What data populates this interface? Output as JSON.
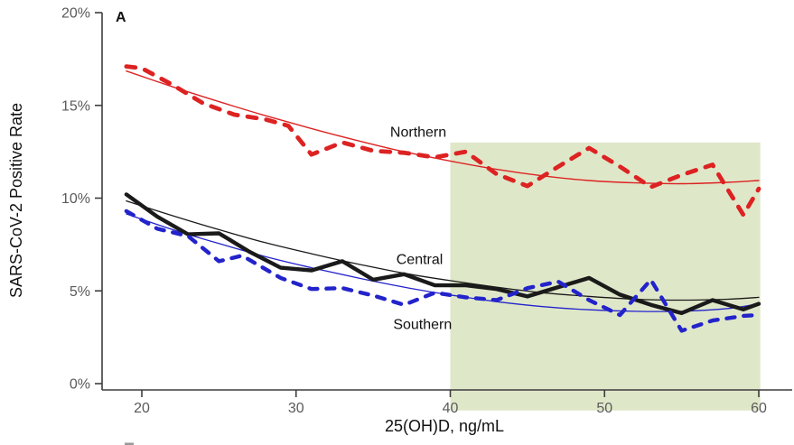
{
  "page": {
    "background": "#ffffff"
  },
  "figure": {
    "panel_label": "A",
    "has_partial_next_panel_mark": true
  },
  "chart_data": {
    "type": "line",
    "title": "",
    "xlabel": "25(OH)D, ng/mL",
    "ylabel": "SARS-CoV-2 Positive Rate",
    "xlim": [
      17.4,
      62.2
    ],
    "ylim": [
      0,
      20
    ],
    "x_ticks": [
      20,
      30,
      40,
      50,
      60
    ],
    "y_ticks": [
      0,
      5,
      10,
      15,
      20
    ],
    "y_tick_suffix": "%",
    "grid": false,
    "legend_position": "inline-labels",
    "colors": {
      "northern": "#dd2222",
      "central": "#1a1a1a",
      "southern": "#2323cb",
      "tick_label": "#5a5a5a",
      "axis": "#3d3d3d",
      "highlight": "#dfe7c9",
      "partial_mark": "#999999"
    },
    "highlight_region": {
      "x0": 40,
      "x1": 60.1,
      "y0": -1.45,
      "y1": 13.0
    },
    "series": [
      {
        "name": "Northern",
        "role": "observed",
        "color_key": "northern",
        "style": "dashed",
        "width": 4.8,
        "dash": "10 11",
        "points": [
          [
            19,
            17.1
          ],
          [
            20,
            17.0
          ],
          [
            22,
            16.1
          ],
          [
            24,
            15.1
          ],
          [
            26,
            14.5
          ],
          [
            28,
            14.25
          ],
          [
            29.5,
            13.9
          ],
          [
            31,
            12.35
          ],
          [
            33,
            13.0
          ],
          [
            35,
            12.55
          ],
          [
            37,
            12.45
          ],
          [
            39,
            12.2
          ],
          [
            41,
            12.5
          ],
          [
            43,
            11.3
          ],
          [
            45,
            10.65
          ],
          [
            47,
            11.7
          ],
          [
            49,
            12.7
          ],
          [
            51,
            11.7
          ],
          [
            53,
            10.6
          ],
          [
            55,
            11.25
          ],
          [
            57,
            11.8
          ],
          [
            59,
            9.1
          ],
          [
            60,
            10.5
          ]
        ]
      },
      {
        "name": "Northern trend",
        "role": "trend",
        "color_key": "northern",
        "style": "solid",
        "width": 1.4,
        "dash": "",
        "points": [
          [
            19,
            16.85
          ],
          [
            22,
            16.0
          ],
          [
            25,
            15.2
          ],
          [
            28,
            14.45
          ],
          [
            31,
            13.75
          ],
          [
            34,
            13.1
          ],
          [
            37,
            12.5
          ],
          [
            40,
            12.0
          ],
          [
            43,
            11.55
          ],
          [
            46,
            11.2
          ],
          [
            49,
            10.95
          ],
          [
            52,
            10.82
          ],
          [
            55,
            10.78
          ],
          [
            58,
            10.85
          ],
          [
            60,
            10.95
          ]
        ]
      },
      {
        "name": "Central",
        "role": "observed",
        "color_key": "central",
        "style": "solid",
        "width": 4.4,
        "dash": "",
        "points": [
          [
            19,
            10.2
          ],
          [
            21,
            9.0
          ],
          [
            23,
            8.05
          ],
          [
            25,
            8.1
          ],
          [
            27,
            7.1
          ],
          [
            29,
            6.25
          ],
          [
            31,
            6.1
          ],
          [
            33,
            6.6
          ],
          [
            35,
            5.6
          ],
          [
            37,
            5.9
          ],
          [
            39,
            5.3
          ],
          [
            41,
            5.3
          ],
          [
            43,
            5.1
          ],
          [
            45,
            4.7
          ],
          [
            47,
            5.2
          ],
          [
            49,
            5.7
          ],
          [
            51,
            4.8
          ],
          [
            53,
            4.25
          ],
          [
            55,
            3.8
          ],
          [
            57,
            4.5
          ],
          [
            59,
            4.0
          ],
          [
            60,
            4.3
          ]
        ]
      },
      {
        "name": "Central trend",
        "role": "trend",
        "color_key": "central",
        "style": "solid",
        "width": 1.3,
        "dash": "",
        "points": [
          [
            19,
            9.85
          ],
          [
            22,
            9.05
          ],
          [
            25,
            8.3
          ],
          [
            28,
            7.6
          ],
          [
            31,
            7.0
          ],
          [
            34,
            6.45
          ],
          [
            37,
            5.95
          ],
          [
            40,
            5.55
          ],
          [
            43,
            5.2
          ],
          [
            46,
            4.9
          ],
          [
            49,
            4.7
          ],
          [
            52,
            4.55
          ],
          [
            55,
            4.5
          ],
          [
            58,
            4.55
          ],
          [
            60,
            4.65
          ]
        ]
      },
      {
        "name": "Southern",
        "role": "observed",
        "color_key": "southern",
        "style": "dashed",
        "width": 4.4,
        "dash": "9 10",
        "points": [
          [
            19,
            9.3
          ],
          [
            21,
            8.35
          ],
          [
            23,
            7.95
          ],
          [
            25,
            6.6
          ],
          [
            26.5,
            6.9
          ],
          [
            29,
            5.7
          ],
          [
            31,
            5.1
          ],
          [
            33,
            5.15
          ],
          [
            35,
            4.75
          ],
          [
            37,
            4.25
          ],
          [
            39,
            4.9
          ],
          [
            41,
            4.65
          ],
          [
            43,
            4.5
          ],
          [
            45,
            5.15
          ],
          [
            47,
            5.5
          ],
          [
            49,
            4.5
          ],
          [
            51,
            3.7
          ],
          [
            53,
            5.6
          ],
          [
            55,
            2.85
          ],
          [
            57,
            3.4
          ],
          [
            59,
            3.65
          ],
          [
            60,
            3.7
          ]
        ]
      },
      {
        "name": "Southern trend",
        "role": "trend",
        "color_key": "southern",
        "style": "solid",
        "width": 1.3,
        "dash": "",
        "points": [
          [
            19,
            9.15
          ],
          [
            22,
            8.3
          ],
          [
            25,
            7.55
          ],
          [
            28,
            6.85
          ],
          [
            31,
            6.25
          ],
          [
            34,
            5.7
          ],
          [
            37,
            5.2
          ],
          [
            40,
            4.78
          ],
          [
            43,
            4.42
          ],
          [
            46,
            4.15
          ],
          [
            49,
            3.98
          ],
          [
            52,
            3.9
          ],
          [
            55,
            3.9
          ],
          [
            58,
            4.05
          ],
          [
            60,
            4.3
          ]
        ]
      }
    ],
    "labels": [
      {
        "text": "Northern",
        "x": 36.1,
        "y": 13.3,
        "color": "#111111"
      },
      {
        "text": "Central",
        "x": 36.5,
        "y": 6.45,
        "color": "#111111"
      },
      {
        "text": "Southern",
        "x": 36.3,
        "y": 2.95,
        "color": "#111111"
      }
    ]
  }
}
